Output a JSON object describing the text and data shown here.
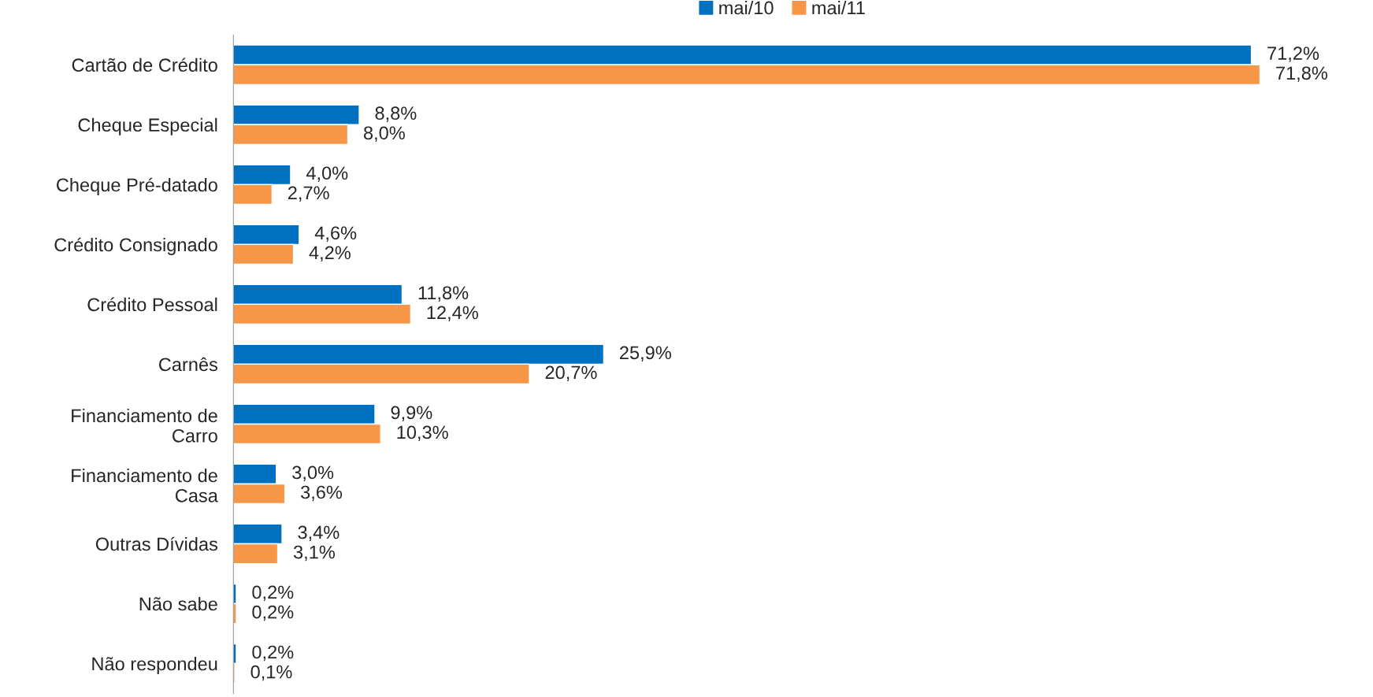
{
  "chart_data": {
    "type": "bar",
    "orientation": "horizontal",
    "legend": "top",
    "tick_labels": "y",
    "grid": false,
    "categories": [
      "Cartão de Crédito",
      "Cheque Especial",
      "Cheque Pré-datado",
      "Crédito Consignado",
      "Crédito Pessoal",
      "Carnês",
      "Financiamento de\nCarro",
      "Financiamento de\nCasa",
      "Outras Dívidas",
      "Não sabe",
      "Não respondeu"
    ],
    "series": [
      {
        "name": "mai/10",
        "color": "#0070c0",
        "values": [
          71.2,
          8.8,
          4.0,
          4.6,
          11.8,
          25.9,
          9.9,
          3.0,
          3.4,
          0.2,
          0.2
        ],
        "value_labels": [
          "71,2%",
          "8,8%",
          "4,0%",
          "4,6%",
          "11,8%",
          "25,9%",
          "9,9%",
          "3,0%",
          "3,4%",
          "0,2%",
          "0,2%"
        ]
      },
      {
        "name": "mai/11",
        "color": "#f79646",
        "values": [
          71.8,
          8.0,
          2.7,
          4.2,
          12.4,
          20.7,
          10.3,
          3.6,
          3.1,
          0.2,
          0.1
        ],
        "value_labels": [
          "71,8%",
          "8,0%",
          "2,7%",
          "4,2%",
          "12,4%",
          "20,7%",
          "10,3%",
          "3,6%",
          "3,1%",
          "0,2%",
          "0,1%"
        ]
      }
    ]
  }
}
